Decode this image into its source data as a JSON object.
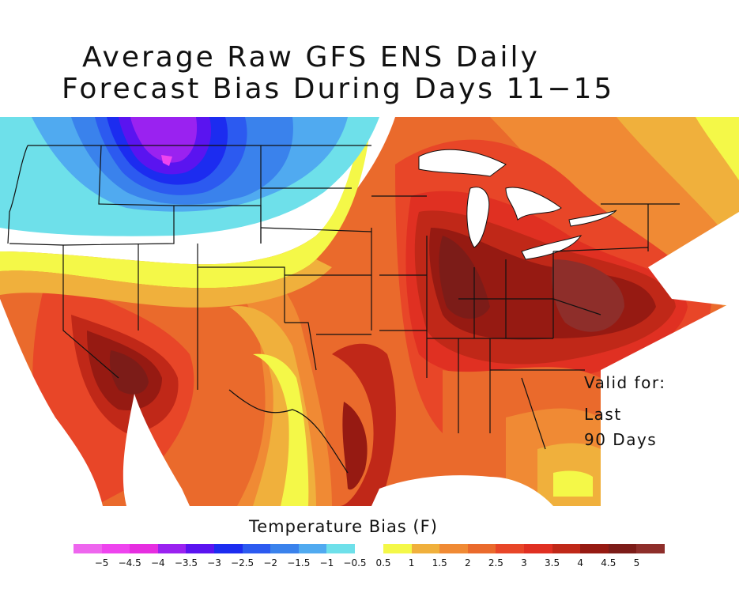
{
  "title_line1": "Average Raw GFS ENS Daily",
  "title_line2": "Forecast Bias During Days 11−15",
  "valid_line1": "Valid for:",
  "valid_line2": "Last",
  "valid_line3": "90 Days",
  "colorbar": {
    "title": "Temperature Bias (F)",
    "negative_colors": [
      "#ee66ee",
      "#ee44ee",
      "#e62ee0",
      "#9a22f0",
      "#5a14f0",
      "#1c2cf0",
      "#2c5af0",
      "#3a82ec",
      "#50aaf0",
      "#6ee0ea"
    ],
    "positive_colors": [
      "#f4f848",
      "#f0b03c",
      "#f08a34",
      "#ea6a2c",
      "#e84628",
      "#e03022",
      "#c02818",
      "#961a12",
      "#7c1c18",
      "#8e2e2a"
    ],
    "negative_ticks": [
      "−5",
      "−4.5",
      "−4",
      "−3.5",
      "−3",
      "−2.5",
      "−2",
      "−1.5",
      "−1",
      "−0.5"
    ],
    "positive_ticks": [
      "0.5",
      "1",
      "1.5",
      "2",
      "2.5",
      "3",
      "3.5",
      "4",
      "4.5",
      "5"
    ]
  }
}
